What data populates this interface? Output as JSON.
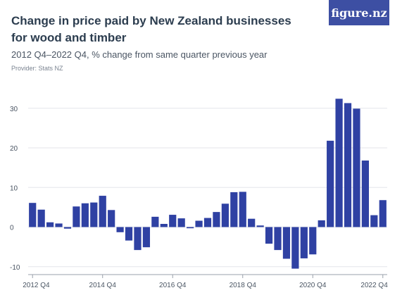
{
  "header": {
    "title": "Change in price paid by New Zealand businesses for wood and timber",
    "subtitle": "2012 Q4–2022 Q4, % change from same quarter previous year",
    "provider": "Provider: Stats NZ",
    "logo": "figure.nz"
  },
  "colors": {
    "bar": "#2f41a3",
    "grid": "#e4e6ea",
    "axis": "#9aa1ab",
    "logo_bg": "#3d4fa3"
  },
  "chart_data": {
    "type": "bar",
    "title": "Change in price paid by New Zealand businesses for wood and timber",
    "subtitle": "2012 Q4–2022 Q4, % change from same quarter previous year",
    "ylim": [
      -12,
      36
    ],
    "yticks": [
      -10,
      0,
      10,
      20,
      30
    ],
    "xtick_labels": [
      "2012 Q4",
      "2014 Q4",
      "2016 Q4",
      "2018 Q4",
      "2020 Q4",
      "2022 Q4"
    ],
    "xtick_indices": [
      0,
      8,
      16,
      24,
      32,
      40
    ],
    "grid": true,
    "values": [
      6.1,
      4.4,
      1.2,
      0.9,
      -0.4,
      5.2,
      6.0,
      6.2,
      7.9,
      4.3,
      -1.3,
      -3.4,
      -5.8,
      -5.1,
      2.6,
      0.8,
      3.1,
      2.2,
      -0.3,
      1.6,
      2.3,
      3.8,
      5.9,
      8.8,
      8.9,
      2.1,
      0.4,
      -4.2,
      -5.8,
      -8.0,
      -10.5,
      -7.9,
      -6.9,
      1.7,
      21.8,
      32.4,
      31.3,
      29.9,
      16.8,
      3.0,
      6.8
    ]
  }
}
